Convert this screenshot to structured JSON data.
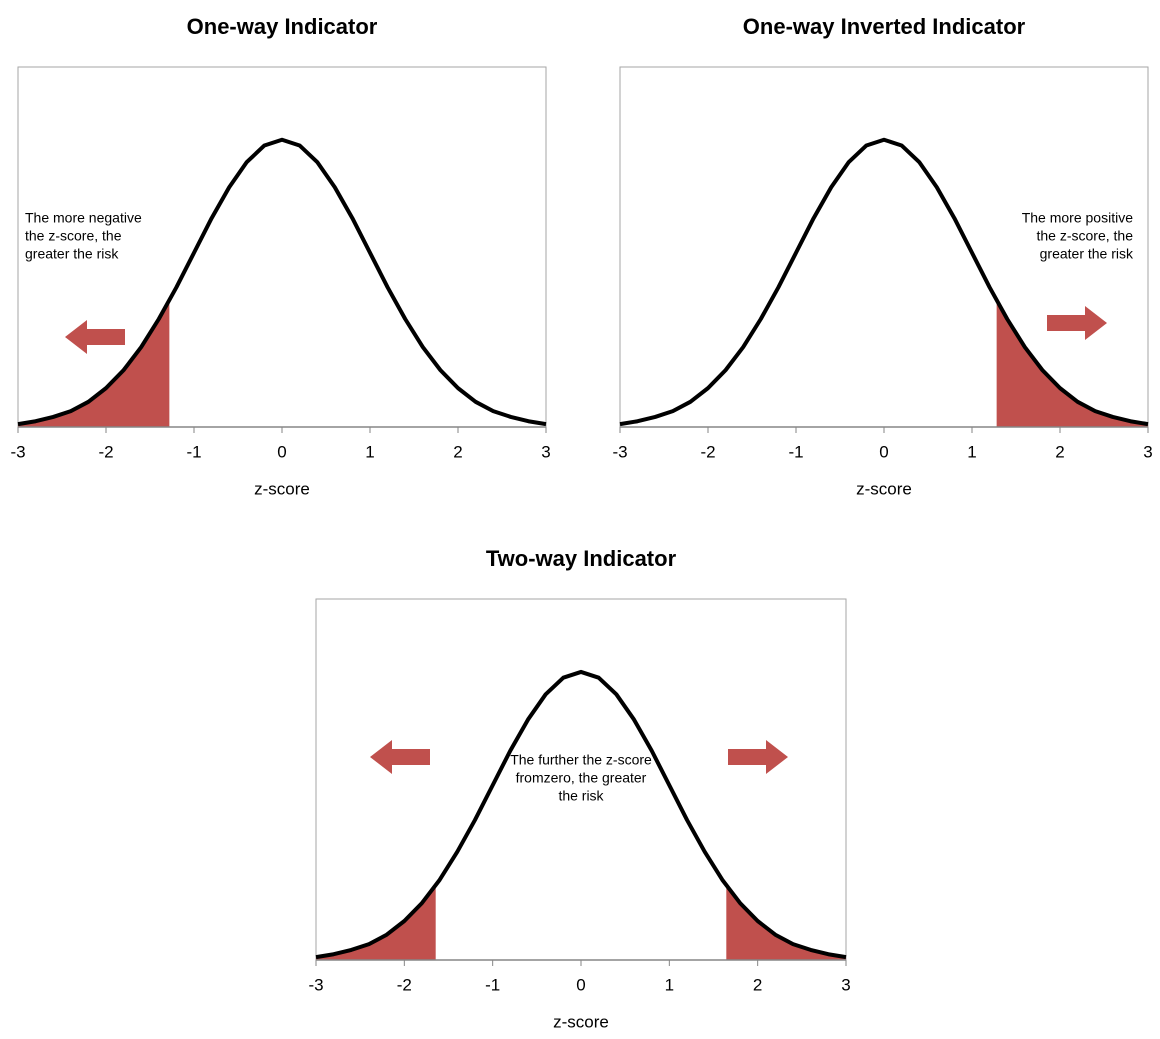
{
  "chart_data": [
    {
      "type": "area",
      "title": "One-way Indicator",
      "x_label": "z-score",
      "x": [
        -3,
        -2.8,
        -2.6,
        -2.4,
        -2.2,
        -2,
        -1.8,
        -1.6,
        -1.4,
        -1.2,
        -1,
        -0.8,
        -0.6,
        -0.4,
        -0.2,
        0,
        0.2,
        0.4,
        0.6,
        0.8,
        1,
        1.2,
        1.4,
        1.6,
        1.8,
        2,
        2.2,
        2.4,
        2.6,
        2.8,
        3
      ],
      "values": [
        0.004,
        0.008,
        0.014,
        0.022,
        0.035,
        0.054,
        0.079,
        0.111,
        0.15,
        0.194,
        0.242,
        0.29,
        0.333,
        0.368,
        0.391,
        0.399,
        0.391,
        0.368,
        0.333,
        0.29,
        0.242,
        0.194,
        0.15,
        0.111,
        0.079,
        0.054,
        0.035,
        0.022,
        0.014,
        0.008,
        0.004
      ],
      "xlim": [
        -3,
        3
      ],
      "xticks": [
        -3,
        -2,
        -1,
        0,
        1,
        2,
        3
      ],
      "ylim": [
        0,
        0.5
      ],
      "line_color": "#000000",
      "shade_color": "#c0504d",
      "shaded": [
        [
          -3,
          -1.28
        ]
      ],
      "arrows": [
        "left"
      ],
      "annotation": [
        "The more negative",
        "the z-score, the",
        "greater the risk"
      ]
    },
    {
      "type": "area",
      "title": "One-way Inverted Indicator",
      "x_label": "z-score",
      "x": [
        -3,
        -2.8,
        -2.6,
        -2.4,
        -2.2,
        -2,
        -1.8,
        -1.6,
        -1.4,
        -1.2,
        -1,
        -0.8,
        -0.6,
        -0.4,
        -0.2,
        0,
        0.2,
        0.4,
        0.6,
        0.8,
        1,
        1.2,
        1.4,
        1.6,
        1.8,
        2,
        2.2,
        2.4,
        2.6,
        2.8,
        3
      ],
      "values": [
        0.004,
        0.008,
        0.014,
        0.022,
        0.035,
        0.054,
        0.079,
        0.111,
        0.15,
        0.194,
        0.242,
        0.29,
        0.333,
        0.368,
        0.391,
        0.399,
        0.391,
        0.368,
        0.333,
        0.29,
        0.242,
        0.194,
        0.15,
        0.111,
        0.079,
        0.054,
        0.035,
        0.022,
        0.014,
        0.008,
        0.004
      ],
      "xlim": [
        -3,
        3
      ],
      "xticks": [
        -3,
        -2,
        -1,
        0,
        1,
        2,
        3
      ],
      "ylim": [
        0,
        0.5
      ],
      "line_color": "#000000",
      "shade_color": "#c0504d",
      "shaded": [
        [
          1.28,
          3
        ]
      ],
      "arrows": [
        "right"
      ],
      "annotation": [
        "The more positive",
        "the z-score, the",
        "greater the risk"
      ]
    },
    {
      "type": "area",
      "title": "Two-way Indicator",
      "x_label": "z-score",
      "x": [
        -3,
        -2.8,
        -2.6,
        -2.4,
        -2.2,
        -2,
        -1.8,
        -1.6,
        -1.4,
        -1.2,
        -1,
        -0.8,
        -0.6,
        -0.4,
        -0.2,
        0,
        0.2,
        0.4,
        0.6,
        0.8,
        1,
        1.2,
        1.4,
        1.6,
        1.8,
        2,
        2.2,
        2.4,
        2.6,
        2.8,
        3
      ],
      "values": [
        0.004,
        0.008,
        0.014,
        0.022,
        0.035,
        0.054,
        0.079,
        0.111,
        0.15,
        0.194,
        0.242,
        0.29,
        0.333,
        0.368,
        0.391,
        0.399,
        0.391,
        0.368,
        0.333,
        0.29,
        0.242,
        0.194,
        0.15,
        0.111,
        0.079,
        0.054,
        0.035,
        0.022,
        0.014,
        0.008,
        0.004
      ],
      "xlim": [
        -3,
        3
      ],
      "xticks": [
        -3,
        -2,
        -1,
        0,
        1,
        2,
        3
      ],
      "ylim": [
        0,
        0.5
      ],
      "line_color": "#000000",
      "shade_color": "#c0504d",
      "shaded": [
        [
          -3,
          -1.645
        ],
        [
          1.645,
          3
        ]
      ],
      "arrows": [
        "left",
        "right"
      ],
      "annotation": [
        "The further the z-score",
        "fromzero, the greater",
        "the risk"
      ]
    }
  ]
}
